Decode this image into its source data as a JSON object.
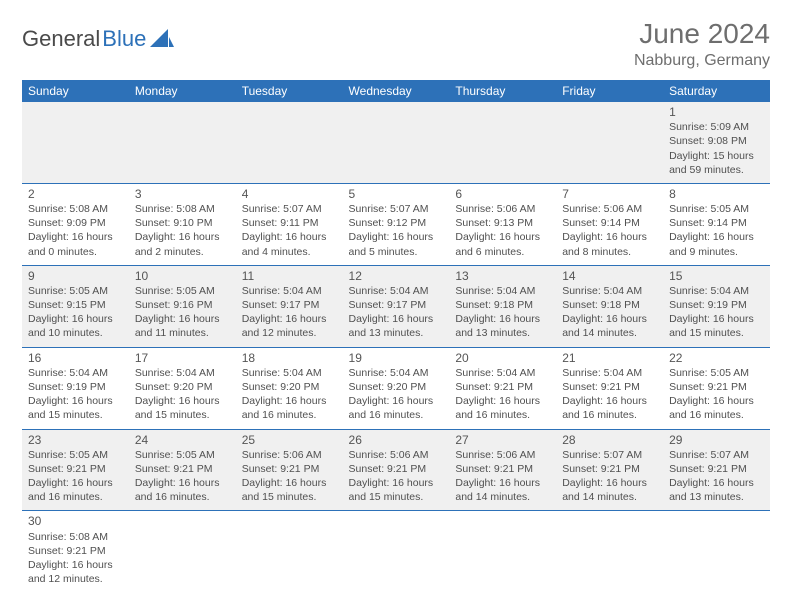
{
  "brand": {
    "part1": "General",
    "part2": "Blue"
  },
  "colors": {
    "header_bg": "#2d71b8",
    "header_fg": "#ffffff",
    "row_alt_bg": "#f0f0f0",
    "cell_border": "#2d71b8",
    "title_color": "#6e6e6e",
    "text_color": "#505050"
  },
  "title": "June 2024",
  "location": "Nabburg, Germany",
  "weekdays": [
    "Sunday",
    "Monday",
    "Tuesday",
    "Wednesday",
    "Thursday",
    "Friday",
    "Saturday"
  ],
  "weeks": [
    [
      null,
      null,
      null,
      null,
      null,
      null,
      {
        "d": "1",
        "sr": "Sunrise: 5:09 AM",
        "ss": "Sunset: 9:08 PM",
        "dl1": "Daylight: 15 hours",
        "dl2": "and 59 minutes."
      }
    ],
    [
      {
        "d": "2",
        "sr": "Sunrise: 5:08 AM",
        "ss": "Sunset: 9:09 PM",
        "dl1": "Daylight: 16 hours",
        "dl2": "and 0 minutes."
      },
      {
        "d": "3",
        "sr": "Sunrise: 5:08 AM",
        "ss": "Sunset: 9:10 PM",
        "dl1": "Daylight: 16 hours",
        "dl2": "and 2 minutes."
      },
      {
        "d": "4",
        "sr": "Sunrise: 5:07 AM",
        "ss": "Sunset: 9:11 PM",
        "dl1": "Daylight: 16 hours",
        "dl2": "and 4 minutes."
      },
      {
        "d": "5",
        "sr": "Sunrise: 5:07 AM",
        "ss": "Sunset: 9:12 PM",
        "dl1": "Daylight: 16 hours",
        "dl2": "and 5 minutes."
      },
      {
        "d": "6",
        "sr": "Sunrise: 5:06 AM",
        "ss": "Sunset: 9:13 PM",
        "dl1": "Daylight: 16 hours",
        "dl2": "and 6 minutes."
      },
      {
        "d": "7",
        "sr": "Sunrise: 5:06 AM",
        "ss": "Sunset: 9:14 PM",
        "dl1": "Daylight: 16 hours",
        "dl2": "and 8 minutes."
      },
      {
        "d": "8",
        "sr": "Sunrise: 5:05 AM",
        "ss": "Sunset: 9:14 PM",
        "dl1": "Daylight: 16 hours",
        "dl2": "and 9 minutes."
      }
    ],
    [
      {
        "d": "9",
        "sr": "Sunrise: 5:05 AM",
        "ss": "Sunset: 9:15 PM",
        "dl1": "Daylight: 16 hours",
        "dl2": "and 10 minutes."
      },
      {
        "d": "10",
        "sr": "Sunrise: 5:05 AM",
        "ss": "Sunset: 9:16 PM",
        "dl1": "Daylight: 16 hours",
        "dl2": "and 11 minutes."
      },
      {
        "d": "11",
        "sr": "Sunrise: 5:04 AM",
        "ss": "Sunset: 9:17 PM",
        "dl1": "Daylight: 16 hours",
        "dl2": "and 12 minutes."
      },
      {
        "d": "12",
        "sr": "Sunrise: 5:04 AM",
        "ss": "Sunset: 9:17 PM",
        "dl1": "Daylight: 16 hours",
        "dl2": "and 13 minutes."
      },
      {
        "d": "13",
        "sr": "Sunrise: 5:04 AM",
        "ss": "Sunset: 9:18 PM",
        "dl1": "Daylight: 16 hours",
        "dl2": "and 13 minutes."
      },
      {
        "d": "14",
        "sr": "Sunrise: 5:04 AM",
        "ss": "Sunset: 9:18 PM",
        "dl1": "Daylight: 16 hours",
        "dl2": "and 14 minutes."
      },
      {
        "d": "15",
        "sr": "Sunrise: 5:04 AM",
        "ss": "Sunset: 9:19 PM",
        "dl1": "Daylight: 16 hours",
        "dl2": "and 15 minutes."
      }
    ],
    [
      {
        "d": "16",
        "sr": "Sunrise: 5:04 AM",
        "ss": "Sunset: 9:19 PM",
        "dl1": "Daylight: 16 hours",
        "dl2": "and 15 minutes."
      },
      {
        "d": "17",
        "sr": "Sunrise: 5:04 AM",
        "ss": "Sunset: 9:20 PM",
        "dl1": "Daylight: 16 hours",
        "dl2": "and 15 minutes."
      },
      {
        "d": "18",
        "sr": "Sunrise: 5:04 AM",
        "ss": "Sunset: 9:20 PM",
        "dl1": "Daylight: 16 hours",
        "dl2": "and 16 minutes."
      },
      {
        "d": "19",
        "sr": "Sunrise: 5:04 AM",
        "ss": "Sunset: 9:20 PM",
        "dl1": "Daylight: 16 hours",
        "dl2": "and 16 minutes."
      },
      {
        "d": "20",
        "sr": "Sunrise: 5:04 AM",
        "ss": "Sunset: 9:21 PM",
        "dl1": "Daylight: 16 hours",
        "dl2": "and 16 minutes."
      },
      {
        "d": "21",
        "sr": "Sunrise: 5:04 AM",
        "ss": "Sunset: 9:21 PM",
        "dl1": "Daylight: 16 hours",
        "dl2": "and 16 minutes."
      },
      {
        "d": "22",
        "sr": "Sunrise: 5:05 AM",
        "ss": "Sunset: 9:21 PM",
        "dl1": "Daylight: 16 hours",
        "dl2": "and 16 minutes."
      }
    ],
    [
      {
        "d": "23",
        "sr": "Sunrise: 5:05 AM",
        "ss": "Sunset: 9:21 PM",
        "dl1": "Daylight: 16 hours",
        "dl2": "and 16 minutes."
      },
      {
        "d": "24",
        "sr": "Sunrise: 5:05 AM",
        "ss": "Sunset: 9:21 PM",
        "dl1": "Daylight: 16 hours",
        "dl2": "and 16 minutes."
      },
      {
        "d": "25",
        "sr": "Sunrise: 5:06 AM",
        "ss": "Sunset: 9:21 PM",
        "dl1": "Daylight: 16 hours",
        "dl2": "and 15 minutes."
      },
      {
        "d": "26",
        "sr": "Sunrise: 5:06 AM",
        "ss": "Sunset: 9:21 PM",
        "dl1": "Daylight: 16 hours",
        "dl2": "and 15 minutes."
      },
      {
        "d": "27",
        "sr": "Sunrise: 5:06 AM",
        "ss": "Sunset: 9:21 PM",
        "dl1": "Daylight: 16 hours",
        "dl2": "and 14 minutes."
      },
      {
        "d": "28",
        "sr": "Sunrise: 5:07 AM",
        "ss": "Sunset: 9:21 PM",
        "dl1": "Daylight: 16 hours",
        "dl2": "and 14 minutes."
      },
      {
        "d": "29",
        "sr": "Sunrise: 5:07 AM",
        "ss": "Sunset: 9:21 PM",
        "dl1": "Daylight: 16 hours",
        "dl2": "and 13 minutes."
      }
    ],
    [
      {
        "d": "30",
        "sr": "Sunrise: 5:08 AM",
        "ss": "Sunset: 9:21 PM",
        "dl1": "Daylight: 16 hours",
        "dl2": "and 12 minutes."
      },
      null,
      null,
      null,
      null,
      null,
      null
    ]
  ]
}
